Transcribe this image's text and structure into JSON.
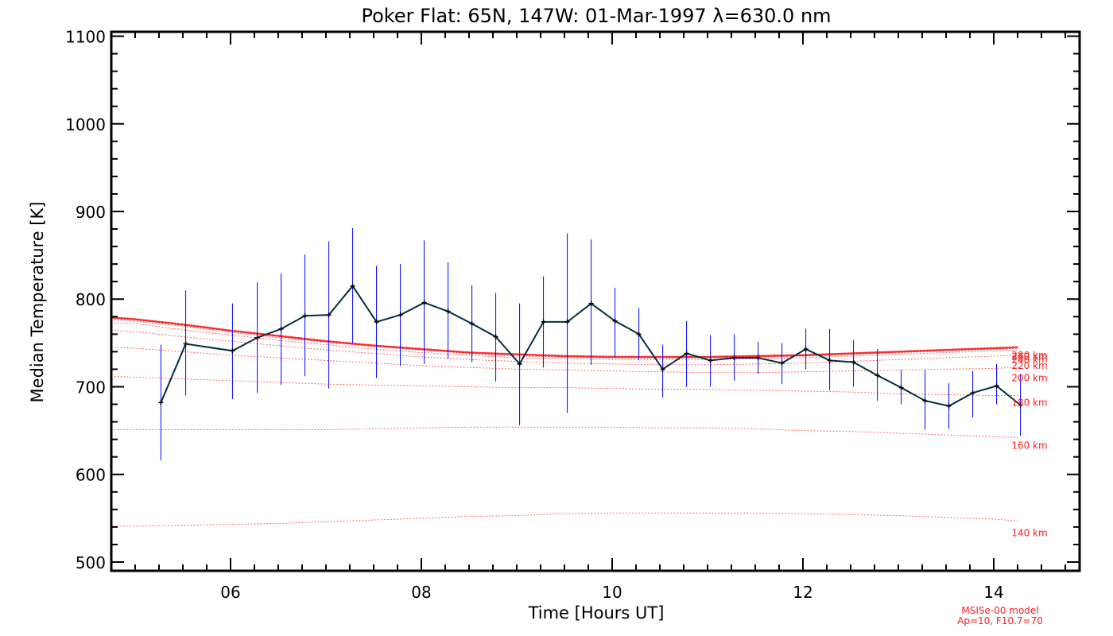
{
  "chart_data": {
    "type": "line",
    "title": "Poker Flat: 65N, 147W: 01-Mar-1997 λ=630.0 nm",
    "xlabel": "Time [Hours UT]",
    "ylabel": "Median Temperature [K]",
    "xlim": [
      4.75,
      14.9
    ],
    "ylim": [
      490,
      1105
    ],
    "x_ticks": [
      {
        "value": 6,
        "label": "06"
      },
      {
        "value": 8,
        "label": "08"
      },
      {
        "value": 10,
        "label": "10"
      },
      {
        "value": 12,
        "label": "12"
      },
      {
        "value": 14,
        "label": "14"
      }
    ],
    "y_ticks": [
      {
        "value": 500,
        "label": "500"
      },
      {
        "value": 600,
        "label": "600"
      },
      {
        "value": 700,
        "label": "700"
      },
      {
        "value": 800,
        "label": "800"
      },
      {
        "value": 900,
        "label": "900"
      },
      {
        "value": 1000,
        "label": "1000"
      },
      {
        "value": 1100,
        "label": "1100"
      }
    ],
    "grid": false,
    "colors": {
      "measured_line": "#003040",
      "error_bars": "#0000ff",
      "model": "#ff2020",
      "axes": "#000000"
    },
    "measured": {
      "x": [
        5.27,
        5.53,
        6.02,
        6.28,
        6.53,
        6.78,
        7.03,
        7.28,
        7.53,
        7.78,
        8.03,
        8.28,
        8.53,
        8.78,
        9.03,
        9.28,
        9.53,
        9.78,
        10.03,
        10.28,
        10.53,
        10.78,
        11.03,
        11.28,
        11.53,
        11.78,
        12.03,
        12.28,
        12.53,
        12.78,
        13.03,
        13.28,
        13.53,
        13.78,
        14.03,
        14.28
      ],
      "y": [
        682,
        749,
        741,
        756,
        766,
        781,
        782,
        815,
        774,
        782,
        796,
        786,
        772,
        757,
        726,
        774,
        774,
        795,
        775,
        760,
        720,
        738,
        730,
        733,
        733,
        727,
        743,
        730,
        728,
        713,
        699,
        684,
        678,
        693,
        701,
        679
      ],
      "err_lo": [
        616,
        690,
        686,
        693,
        702,
        712,
        698,
        750,
        710,
        724,
        726,
        732,
        728,
        706,
        656,
        722,
        670,
        725,
        734,
        730,
        688,
        700,
        700,
        707,
        715,
        703,
        720,
        696,
        700,
        684,
        680,
        651,
        652,
        665,
        680,
        644
      ],
      "err_hi": [
        748,
        810,
        795,
        819,
        829,
        851,
        866,
        881,
        838,
        840,
        867,
        842,
        816,
        807,
        795,
        826,
        875,
        868,
        813,
        790,
        748,
        775,
        759,
        760,
        751,
        750,
        766,
        766,
        753,
        743,
        719,
        719,
        704,
        718,
        726,
        714
      ]
    },
    "model_x": [
      4.75,
      5,
      5.5,
      6,
      6.5,
      7,
      7.5,
      8,
      8.5,
      9,
      9.5,
      10,
      10.5,
      11,
      11.5,
      12,
      12.5,
      13,
      13.5,
      14,
      14.25
    ],
    "model_series": [
      {
        "name": "140 km",
        "values": [
          541,
          541,
          542,
          543,
          544,
          546,
          548,
          550,
          552,
          553,
          555,
          556,
          556,
          556,
          556,
          555,
          554,
          553,
          551,
          549,
          547
        ]
      },
      {
        "name": "160 km",
        "values": [
          651,
          651,
          651,
          651,
          651,
          651,
          652,
          653,
          654,
          654,
          654,
          654,
          653,
          653,
          652,
          650,
          649,
          647,
          645,
          643,
          642
        ]
      },
      {
        "name": "180 km",
        "values": [
          712,
          711,
          709,
          707,
          705,
          703,
          702,
          701,
          700,
          699,
          699,
          698,
          697,
          697,
          696,
          695,
          694,
          692,
          691,
          690,
          690
        ]
      },
      {
        "name": "200 km",
        "values": [
          745,
          744,
          740,
          736,
          733,
          730,
          727,
          724,
          722,
          720,
          719,
          718,
          717,
          716,
          716,
          717,
          718,
          719,
          720,
          721,
          722
        ]
      },
      {
        "name": "220 km",
        "values": [
          764,
          763,
          757,
          752,
          747,
          742,
          738,
          734,
          731,
          729,
          727,
          726,
          725,
          725,
          726,
          727,
          729,
          731,
          733,
          735,
          736
        ]
      },
      {
        "name": "240 km",
        "values": [
          773,
          772,
          765,
          759,
          753,
          748,
          743,
          739,
          736,
          733,
          732,
          731,
          731,
          731,
          732,
          733,
          735,
          737,
          739,
          741,
          742
        ]
      },
      {
        "name": "260 km",
        "values": [
          777,
          775,
          769,
          762,
          756,
          751,
          746,
          742,
          738,
          735,
          734,
          733,
          733,
          733,
          734,
          735,
          737,
          739,
          741,
          743,
          744
        ]
      },
      {
        "name": "280 km",
        "values": [
          779,
          777,
          771,
          764,
          758,
          752,
          747,
          743,
          739,
          737,
          735,
          734,
          734,
          734,
          735,
          736,
          738,
          740,
          742,
          744,
          745
        ]
      }
    ],
    "model_labels": [
      "140 km",
      "160 km",
      "180 km",
      "200 km",
      "220 km",
      "240 km",
      "260 km",
      "280 km"
    ],
    "model_label_y": [
      533,
      633,
      682,
      710,
      724,
      731,
      734,
      736
    ],
    "note_line1": "MSISe-00 model",
    "note_line2": "Ap=10, F10.7=70"
  }
}
